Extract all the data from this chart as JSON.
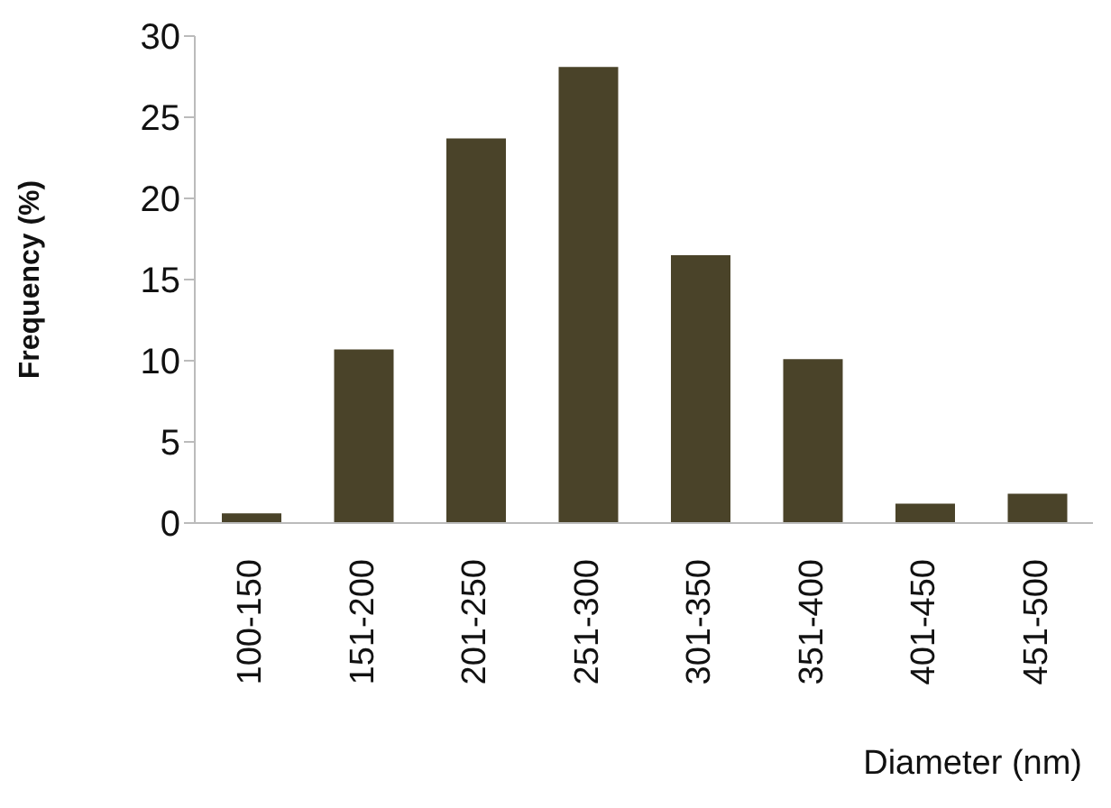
{
  "chart_data": {
    "type": "bar",
    "xlabel": "Diameter (nm)",
    "ylabel": "Frequency (%)",
    "categories": [
      "100-150",
      "151-200",
      "201-250",
      "251-300",
      "301-350",
      "351-400",
      "401-450",
      "451-500"
    ],
    "values": [
      0.6,
      10.7,
      23.7,
      28.1,
      16.5,
      10.1,
      1.2,
      1.8
    ],
    "color": "#4a4329",
    "ylim": [
      0,
      30
    ],
    "yticks": [
      0,
      5,
      10,
      15,
      20,
      25,
      30
    ],
    "grid": false,
    "legend": false
  }
}
